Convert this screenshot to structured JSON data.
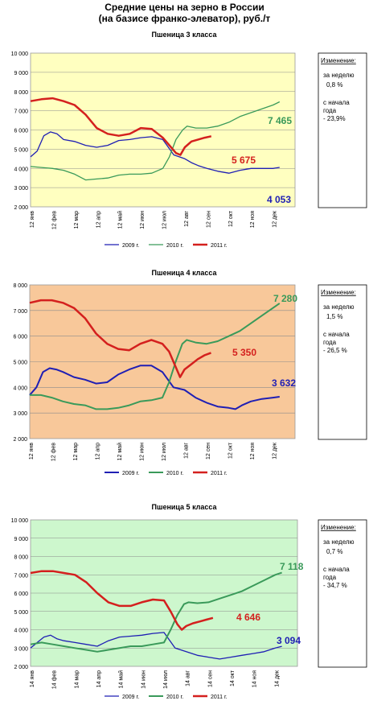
{
  "page": {
    "title_line1": "Средние цены на зерно в России",
    "title_line2": "(на базисе франко-элеватор), руб./т"
  },
  "colors": {
    "y2009": "#1f1fb4",
    "y2010": "#3a9a5a",
    "y2011": "#d4201e"
  },
  "chart_data": [
    {
      "type": "line",
      "title": "Пшеница 3  класса",
      "background": "#ffffc0",
      "ylim": [
        2000,
        10000
      ],
      "y_ticks": [
        "2 000",
        "3 000",
        "4 000",
        "5 000",
        "6 000",
        "7 000",
        "8 000",
        "9 000",
        "10 000"
      ],
      "x_ticks": [
        "12 янв",
        "12 фев",
        "12 мар",
        "12 апр",
        "12 май",
        "12 июн",
        "12 июл",
        "12 авг",
        "12 сен",
        "12 окт",
        "12 ноя",
        "12 дек"
      ],
      "legend": [
        "2009 г.",
        "2010 г.",
        "2011 г."
      ],
      "side_panel": {
        "header": "Изменение:",
        "week_label": "за  неделю",
        "week_value": "0,8 %",
        "ytd_label": "с начала года",
        "ytd_value": "- 23,9%"
      },
      "end_labels": {
        "y2010": "7 465",
        "y2011": "5 675",
        "y2009": "4 053"
      },
      "series": [
        {
          "name": "2009 г.",
          "key": "y2009",
          "width": 1.3,
          "x": [
            0,
            0.3,
            0.6,
            0.9,
            1.2,
            1.5,
            2,
            2.5,
            3,
            3.5,
            4,
            4.5,
            5,
            5.5,
            6,
            6.5,
            7,
            7.3,
            7.6,
            8,
            8.5,
            9,
            9.5,
            10,
            10.5,
            11,
            11.3
          ],
          "values": [
            4600,
            4900,
            5700,
            5900,
            5800,
            5500,
            5400,
            5200,
            5100,
            5200,
            5450,
            5500,
            5600,
            5650,
            5500,
            4700,
            4500,
            4300,
            4150,
            4000,
            3850,
            3750,
            3900,
            4000,
            4000,
            4000,
            4053
          ]
        },
        {
          "name": "2010 г.",
          "key": "y2010",
          "width": 1.3,
          "x": [
            0,
            0.5,
            1,
            1.5,
            2,
            2.5,
            3,
            3.5,
            4,
            4.5,
            5,
            5.5,
            6,
            6.3,
            6.6,
            6.9,
            7.1,
            7.5,
            8,
            8.5,
            9,
            9.5,
            10,
            10.5,
            11,
            11.3
          ],
          "values": [
            4100,
            4050,
            4000,
            3900,
            3700,
            3400,
            3450,
            3500,
            3650,
            3700,
            3700,
            3750,
            4000,
            4600,
            5500,
            6000,
            6200,
            6100,
            6100,
            6200,
            6400,
            6700,
            6900,
            7100,
            7300,
            7465
          ]
        },
        {
          "name": "2011 г.",
          "key": "y2011",
          "width": 2.5,
          "x": [
            0,
            0.5,
            1,
            1.5,
            2,
            2.5,
            3,
            3.5,
            4,
            4.5,
            5,
            5.5,
            6,
            6.3,
            6.6,
            6.8,
            7,
            7.3,
            7.6,
            7.9,
            8.2
          ],
          "values": [
            7500,
            7600,
            7650,
            7500,
            7300,
            6800,
            6100,
            5800,
            5700,
            5800,
            6100,
            6050,
            5600,
            5200,
            4800,
            4700,
            5100,
            5400,
            5500,
            5600,
            5675
          ]
        }
      ]
    },
    {
      "type": "line",
      "title": "Пшеница 4 класса",
      "background": "#f8c89a",
      "ylim": [
        2000,
        8000
      ],
      "y_ticks": [
        "2 000",
        "3 000",
        "4 000",
        "5 000",
        "6 000",
        "7 000",
        "8 000"
      ],
      "x_ticks": [
        "12 янв",
        "12 фев",
        "12 мар",
        "12 апр",
        "12 май",
        "12 июн",
        "12 июл",
        "12 авг",
        "12 сен",
        "12 окт",
        "12 ноя",
        "12 дек"
      ],
      "legend": [
        "2009 г.",
        "2010 г.",
        "2011 г."
      ],
      "side_panel": {
        "header": "Изменение:",
        "week_label": "за  неделю",
        "week_value": "1,5 %",
        "ytd_label": "с начала года",
        "ytd_value": "- 26,5 %"
      },
      "end_labels": {
        "y2010": "7 280",
        "y2011": "5 350",
        "y2009": "3 632"
      },
      "series": [
        {
          "name": "2009 г.",
          "key": "y2009",
          "width": 2,
          "x": [
            0,
            0.3,
            0.6,
            0.9,
            1.2,
            1.5,
            2,
            2.5,
            3,
            3.5,
            4,
            4.5,
            5,
            5.5,
            6,
            6.5,
            7,
            7.5,
            8,
            8.5,
            9,
            9.3,
            9.6,
            10,
            10.5,
            11,
            11.3
          ],
          "values": [
            3700,
            4000,
            4600,
            4750,
            4700,
            4600,
            4400,
            4300,
            4150,
            4200,
            4500,
            4700,
            4850,
            4850,
            4600,
            4000,
            3900,
            3600,
            3400,
            3250,
            3200,
            3150,
            3300,
            3450,
            3550,
            3600,
            3632
          ]
        },
        {
          "name": "2010 г.",
          "key": "y2010",
          "width": 2,
          "x": [
            0,
            0.5,
            1,
            1.5,
            2,
            2.5,
            3,
            3.5,
            4,
            4.5,
            5,
            5.5,
            6,
            6.3,
            6.6,
            6.9,
            7.1,
            7.5,
            8,
            8.5,
            9,
            9.5,
            10,
            10.5,
            11,
            11.3
          ],
          "values": [
            3700,
            3700,
            3600,
            3450,
            3350,
            3300,
            3150,
            3150,
            3200,
            3300,
            3450,
            3500,
            3600,
            4200,
            5000,
            5700,
            5850,
            5750,
            5700,
            5800,
            6000,
            6200,
            6500,
            6800,
            7100,
            7280
          ]
        },
        {
          "name": "2011 г.",
          "key": "y2011",
          "width": 2.5,
          "x": [
            0,
            0.5,
            1,
            1.5,
            2,
            2.5,
            3,
            3.5,
            4,
            4.5,
            5,
            5.5,
            6,
            6.3,
            6.6,
            6.8,
            7,
            7.3,
            7.6,
            7.9,
            8.2
          ],
          "values": [
            7300,
            7400,
            7400,
            7300,
            7100,
            6700,
            6100,
            5700,
            5500,
            5450,
            5700,
            5850,
            5700,
            5400,
            4800,
            4400,
            4700,
            4900,
            5100,
            5250,
            5350
          ]
        }
      ]
    },
    {
      "type": "line",
      "title": "Пшеница 5 класса",
      "background": "#cdf7cd",
      "ylim": [
        2000,
        10000
      ],
      "y_ticks": [
        "2 000",
        "3 000",
        "4 000",
        "5 000",
        "6 000",
        "7 000",
        "8 000",
        "9 000",
        "10 000"
      ],
      "x_ticks": [
        "14 янв",
        "14 фев",
        "14 мар",
        "14 апр",
        "14 май",
        "14 июн",
        "14 июл",
        "14 авг",
        "14 сен",
        "14 окт",
        "14 ноя",
        "14 дек"
      ],
      "legend": [
        "2009 г.",
        "2010 г.",
        "2011 г."
      ],
      "side_panel": {
        "header": "Изменение:",
        "week_label": "за  неделю",
        "week_value": "0,7 %",
        "ytd_label": "с начала года",
        "ytd_value": "- 34,7 %"
      },
      "end_labels": {
        "y2010": "7 118",
        "y2011": "4 646",
        "y2009": "3 094"
      },
      "series": [
        {
          "name": "2009 г.",
          "key": "y2009",
          "width": 1.3,
          "x": [
            0,
            0.3,
            0.6,
            0.9,
            1.2,
            1.5,
            2,
            2.5,
            3,
            3.5,
            4,
            4.5,
            5,
            5.5,
            6,
            6.5,
            7,
            7.5,
            8,
            8.5,
            9,
            9.5,
            10,
            10.5,
            11,
            11.3
          ],
          "values": [
            3000,
            3300,
            3600,
            3700,
            3500,
            3400,
            3300,
            3200,
            3100,
            3400,
            3600,
            3650,
            3700,
            3800,
            3850,
            3000,
            2800,
            2600,
            2500,
            2400,
            2500,
            2600,
            2700,
            2800,
            3000,
            3094
          ]
        },
        {
          "name": "2010 г.",
          "key": "y2010",
          "width": 2,
          "x": [
            0,
            0.5,
            1,
            1.5,
            2,
            2.5,
            3,
            3.5,
            4,
            4.5,
            5,
            5.5,
            6,
            6.3,
            6.6,
            6.9,
            7.1,
            7.5,
            8,
            8.5,
            9,
            9.5,
            10,
            10.5,
            11,
            11.3
          ],
          "values": [
            3200,
            3300,
            3200,
            3100,
            3000,
            2900,
            2800,
            2900,
            3000,
            3100,
            3100,
            3200,
            3300,
            4000,
            4800,
            5400,
            5500,
            5450,
            5500,
            5700,
            5900,
            6100,
            6400,
            6700,
            7000,
            7118
          ]
        },
        {
          "name": "2011 г.",
          "key": "y2011",
          "width": 2.5,
          "x": [
            0,
            0.5,
            1,
            1.5,
            2,
            2.5,
            3,
            3.5,
            4,
            4.5,
            5,
            5.5,
            6,
            6.3,
            6.6,
            6.8,
            7,
            7.3,
            7.6,
            7.9,
            8.2
          ],
          "values": [
            7100,
            7200,
            7200,
            7100,
            7000,
            6600,
            6000,
            5500,
            5300,
            5300,
            5500,
            5650,
            5600,
            5000,
            4300,
            4000,
            4200,
            4350,
            4450,
            4550,
            4646
          ]
        }
      ]
    }
  ]
}
